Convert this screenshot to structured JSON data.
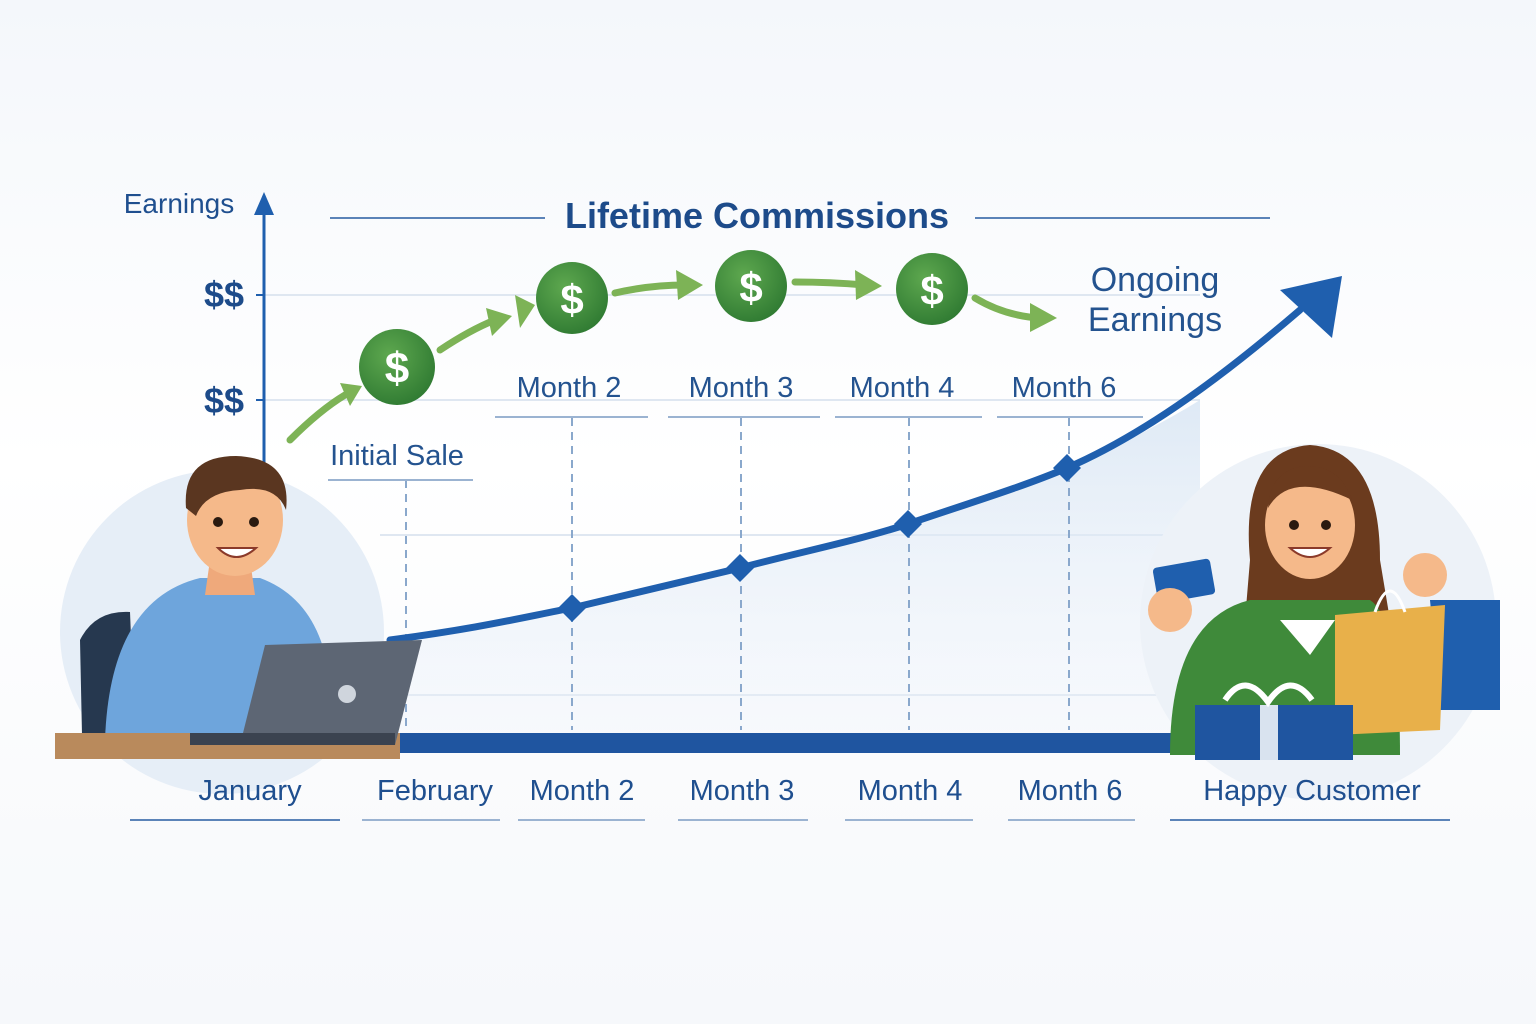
{
  "title": "Lifetime Commissions",
  "y_axis_label": "Earnings",
  "y_ticks": [
    "$$",
    "$$"
  ],
  "top_labels": [
    "Initial Sale",
    "Month 2",
    "Month 3",
    "Month 4",
    "Month 6"
  ],
  "ongoing_label": [
    "Ongoing",
    "Earnings"
  ],
  "coin_symbol": "$",
  "bottom_labels": [
    "January",
    "February",
    "Month 2",
    "Month 3",
    "Month 4",
    "Month 6",
    "Happy Customer"
  ],
  "icons": [
    "dollar-coin-icon",
    "growth-arrow-icon",
    "credit-card-icon",
    "shopping-bag-icon",
    "gift-box-icon",
    "laptop-icon"
  ],
  "colors": {
    "primary_blue": "#1f5fae",
    "dark_blue": "#1d4b8a",
    "coin_green": "#3d8a3a",
    "arrow_green": "#7db356"
  }
}
